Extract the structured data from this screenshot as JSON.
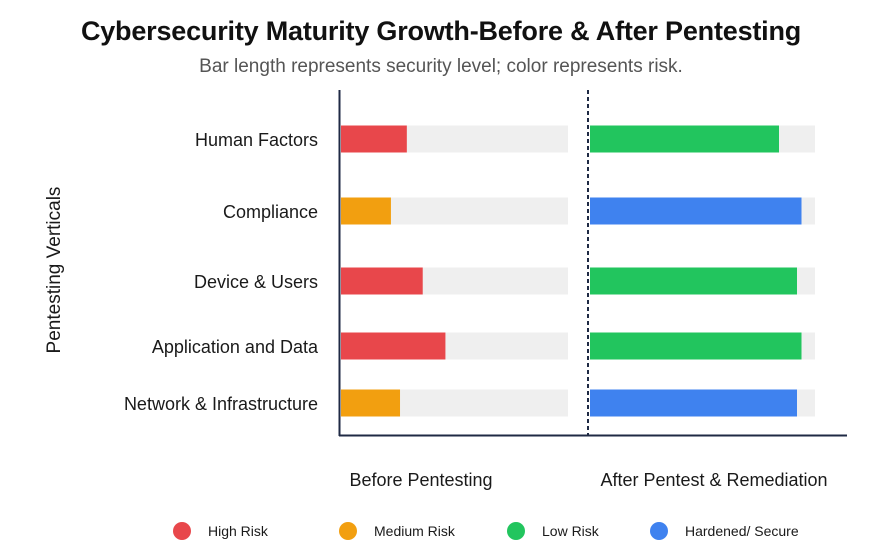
{
  "title": "Cybersecurity Maturity Growth-Before & After Pentesting",
  "subtitle": "Bar length represents security level; color represents risk.",
  "colors": {
    "high_risk": "#e8474b",
    "medium_risk": "#f29f10",
    "low_risk": "#22c55e",
    "hardened": "#3f82ef",
    "track": "#efefef",
    "axis": "#1f2a44"
  },
  "chart_data": {
    "type": "bar",
    "orientation": "horizontal",
    "title": "Cybersecurity Maturity Growth-Before & After Pentesting",
    "subtitle": "Bar length represents security level; color represents risk.",
    "ylabel": "Pentesting Verticals",
    "categories": [
      "Human Factors",
      "Compliance",
      "Device & Users",
      "Application and Data",
      "Network & Infrastructure"
    ],
    "xlim": [
      0,
      100
    ],
    "grid": false,
    "panels": [
      {
        "label": "Before Pentesting",
        "values": [
          29,
          22,
          36,
          46,
          26
        ],
        "risk": [
          "High Risk",
          "Medium Risk",
          "High Risk",
          "High Risk",
          "Medium Risk"
        ]
      },
      {
        "label": "After Pentest & Remediation",
        "values": [
          84,
          94,
          92,
          94,
          92
        ],
        "risk": [
          "Low Risk",
          "Hardened/ Secure",
          "Low Risk",
          "Low Risk",
          "Hardened/ Secure"
        ]
      }
    ],
    "legend": {
      "position": "bottom",
      "items": [
        {
          "label": "High Risk",
          "color": "#e8474b"
        },
        {
          "label": "Medium Risk",
          "color": "#f29f10"
        },
        {
          "label": "Low Risk",
          "color": "#22c55e"
        },
        {
          "label": "Hardened/ Secure",
          "color": "#3f82ef"
        }
      ]
    }
  }
}
